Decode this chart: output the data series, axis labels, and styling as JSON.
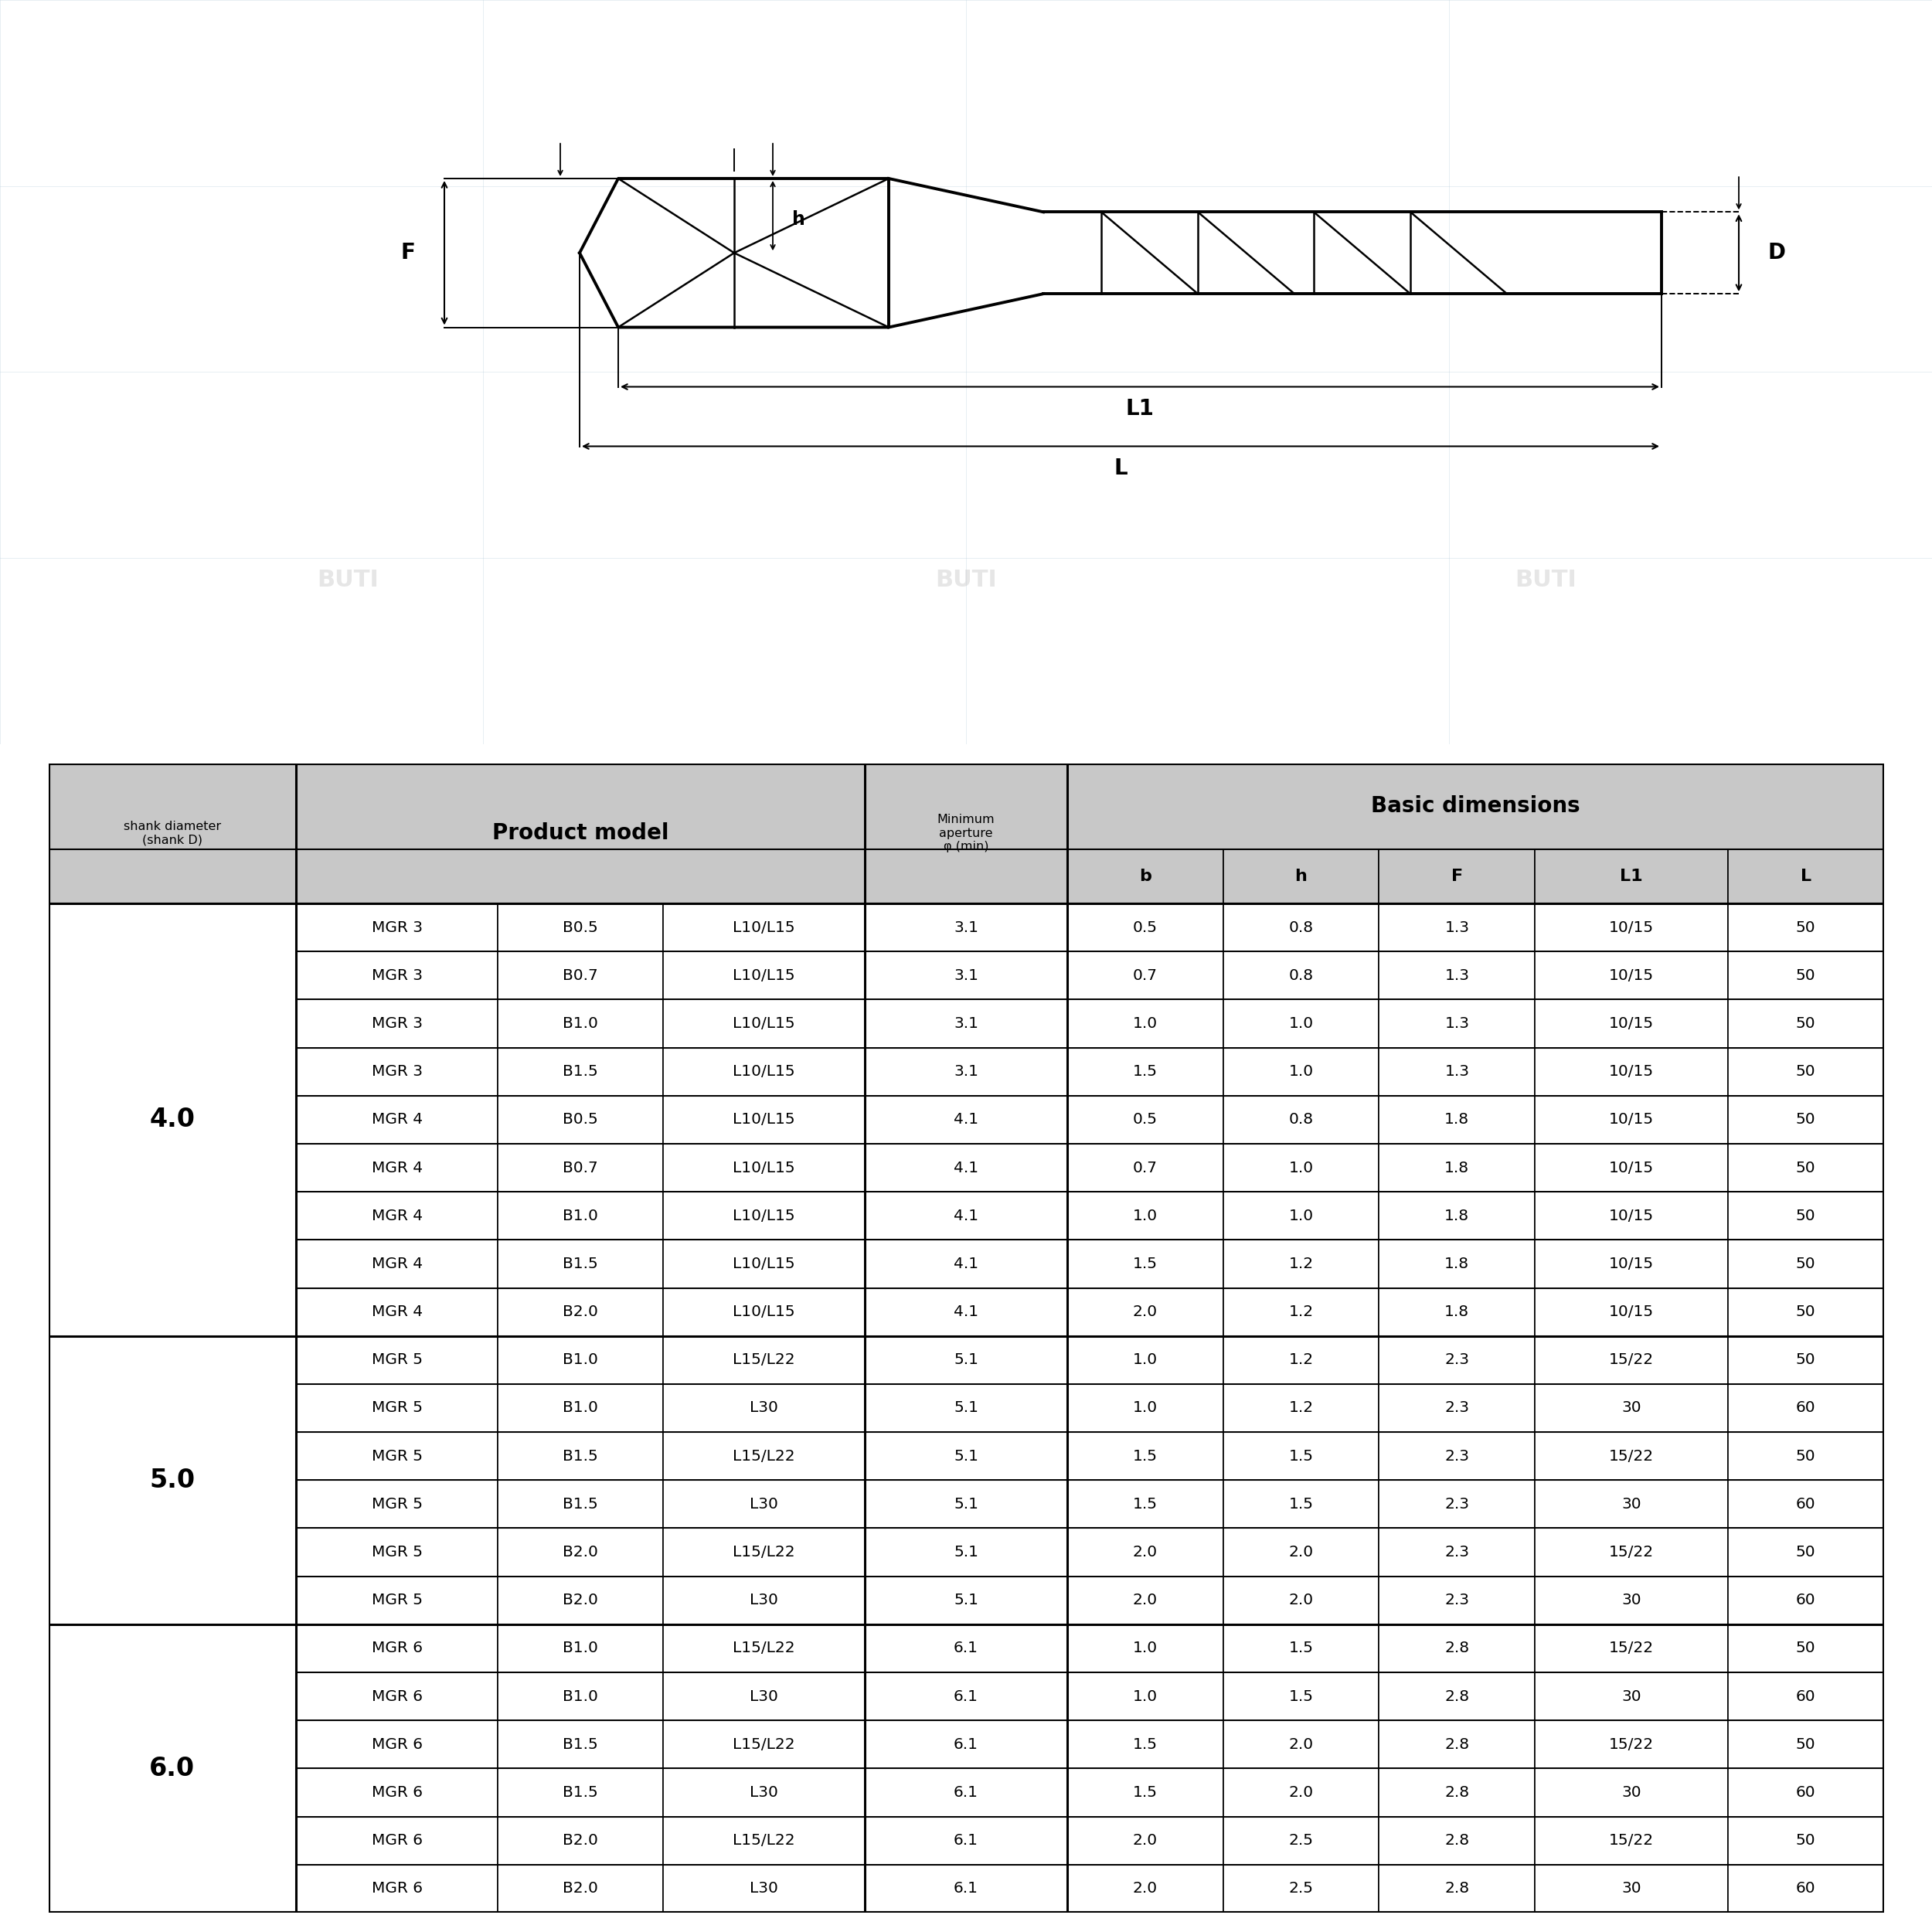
{
  "bg_color": "#ffffff",
  "header_bg": "#c8c8c8",
  "white": "#ffffff",
  "black": "#000000",
  "shank_col_header": "shank diameter\n(shank D)",
  "product_col_header": "Product model",
  "aperture_col_header": "Minimum\naperture\nφ (min)",
  "basic_dim_header": "Basic dimensions",
  "sub_headers": [
    "b",
    "h",
    "F",
    "L1",
    "L"
  ],
  "rows": [
    [
      "4.0",
      "MGR 3",
      "B0.5",
      "L10/L15",
      "3.1",
      "0.5",
      "0.8",
      "1.3",
      "10/15",
      "50"
    ],
    [
      "",
      "MGR 3",
      "B0.7",
      "L10/L15",
      "3.1",
      "0.7",
      "0.8",
      "1.3",
      "10/15",
      "50"
    ],
    [
      "",
      "MGR 3",
      "B1.0",
      "L10/L15",
      "3.1",
      "1.0",
      "1.0",
      "1.3",
      "10/15",
      "50"
    ],
    [
      "",
      "MGR 3",
      "B1.5",
      "L10/L15",
      "3.1",
      "1.5",
      "1.0",
      "1.3",
      "10/15",
      "50"
    ],
    [
      "",
      "MGR 4",
      "B0.5",
      "L10/L15",
      "4.1",
      "0.5",
      "0.8",
      "1.8",
      "10/15",
      "50"
    ],
    [
      "",
      "MGR 4",
      "B0.7",
      "L10/L15",
      "4.1",
      "0.7",
      "1.0",
      "1.8",
      "10/15",
      "50"
    ],
    [
      "",
      "MGR 4",
      "B1.0",
      "L10/L15",
      "4.1",
      "1.0",
      "1.0",
      "1.8",
      "10/15",
      "50"
    ],
    [
      "",
      "MGR 4",
      "B1.5",
      "L10/L15",
      "4.1",
      "1.5",
      "1.2",
      "1.8",
      "10/15",
      "50"
    ],
    [
      "",
      "MGR 4",
      "B2.0",
      "L10/L15",
      "4.1",
      "2.0",
      "1.2",
      "1.8",
      "10/15",
      "50"
    ],
    [
      "5.0",
      "MGR 5",
      "B1.0",
      "L15/L22",
      "5.1",
      "1.0",
      "1.2",
      "2.3",
      "15/22",
      "50"
    ],
    [
      "",
      "MGR 5",
      "B1.0",
      "L30",
      "5.1",
      "1.0",
      "1.2",
      "2.3",
      "30",
      "60"
    ],
    [
      "",
      "MGR 5",
      "B1.5",
      "L15/L22",
      "5.1",
      "1.5",
      "1.5",
      "2.3",
      "15/22",
      "50"
    ],
    [
      "",
      "MGR 5",
      "B1.5",
      "L30",
      "5.1",
      "1.5",
      "1.5",
      "2.3",
      "30",
      "60"
    ],
    [
      "",
      "MGR 5",
      "B2.0",
      "L15/L22",
      "5.1",
      "2.0",
      "2.0",
      "2.3",
      "15/22",
      "50"
    ],
    [
      "",
      "MGR 5",
      "B2.0",
      "L30",
      "5.1",
      "2.0",
      "2.0",
      "2.3",
      "30",
      "60"
    ],
    [
      "6.0",
      "MGR 6",
      "B1.0",
      "L15/L22",
      "6.1",
      "1.0",
      "1.5",
      "2.8",
      "15/22",
      "50"
    ],
    [
      "",
      "MGR 6",
      "B1.0",
      "L30",
      "6.1",
      "1.0",
      "1.5",
      "2.8",
      "30",
      "60"
    ],
    [
      "",
      "MGR 6",
      "B1.5",
      "L15/L22",
      "6.1",
      "1.5",
      "2.0",
      "2.8",
      "15/22",
      "50"
    ],
    [
      "",
      "MGR 6",
      "B1.5",
      "L30",
      "6.1",
      "1.5",
      "2.0",
      "2.8",
      "30",
      "60"
    ],
    [
      "",
      "MGR 6",
      "B2.0",
      "L15/L22",
      "6.1",
      "2.0",
      "2.5",
      "2.8",
      "15/22",
      "50"
    ],
    [
      "",
      "MGR 6",
      "B2.0",
      "L30",
      "6.1",
      "2.0",
      "2.5",
      "2.8",
      "30",
      "60"
    ]
  ],
  "group_spans": [
    {
      "label": "4.0",
      "start": 0,
      "end": 8
    },
    {
      "label": "5.0",
      "start": 9,
      "end": 14
    },
    {
      "label": "6.0",
      "start": 15,
      "end": 20
    }
  ],
  "col_widths_raw": [
    1.35,
    1.1,
    0.9,
    1.1,
    1.1,
    0.85,
    0.85,
    0.85,
    1.05,
    0.85
  ],
  "watermark_color": "#c8c8c8",
  "watermark_alpha": 0.45,
  "grid_color": "#b0c8d8",
  "grid_alpha": 0.35
}
